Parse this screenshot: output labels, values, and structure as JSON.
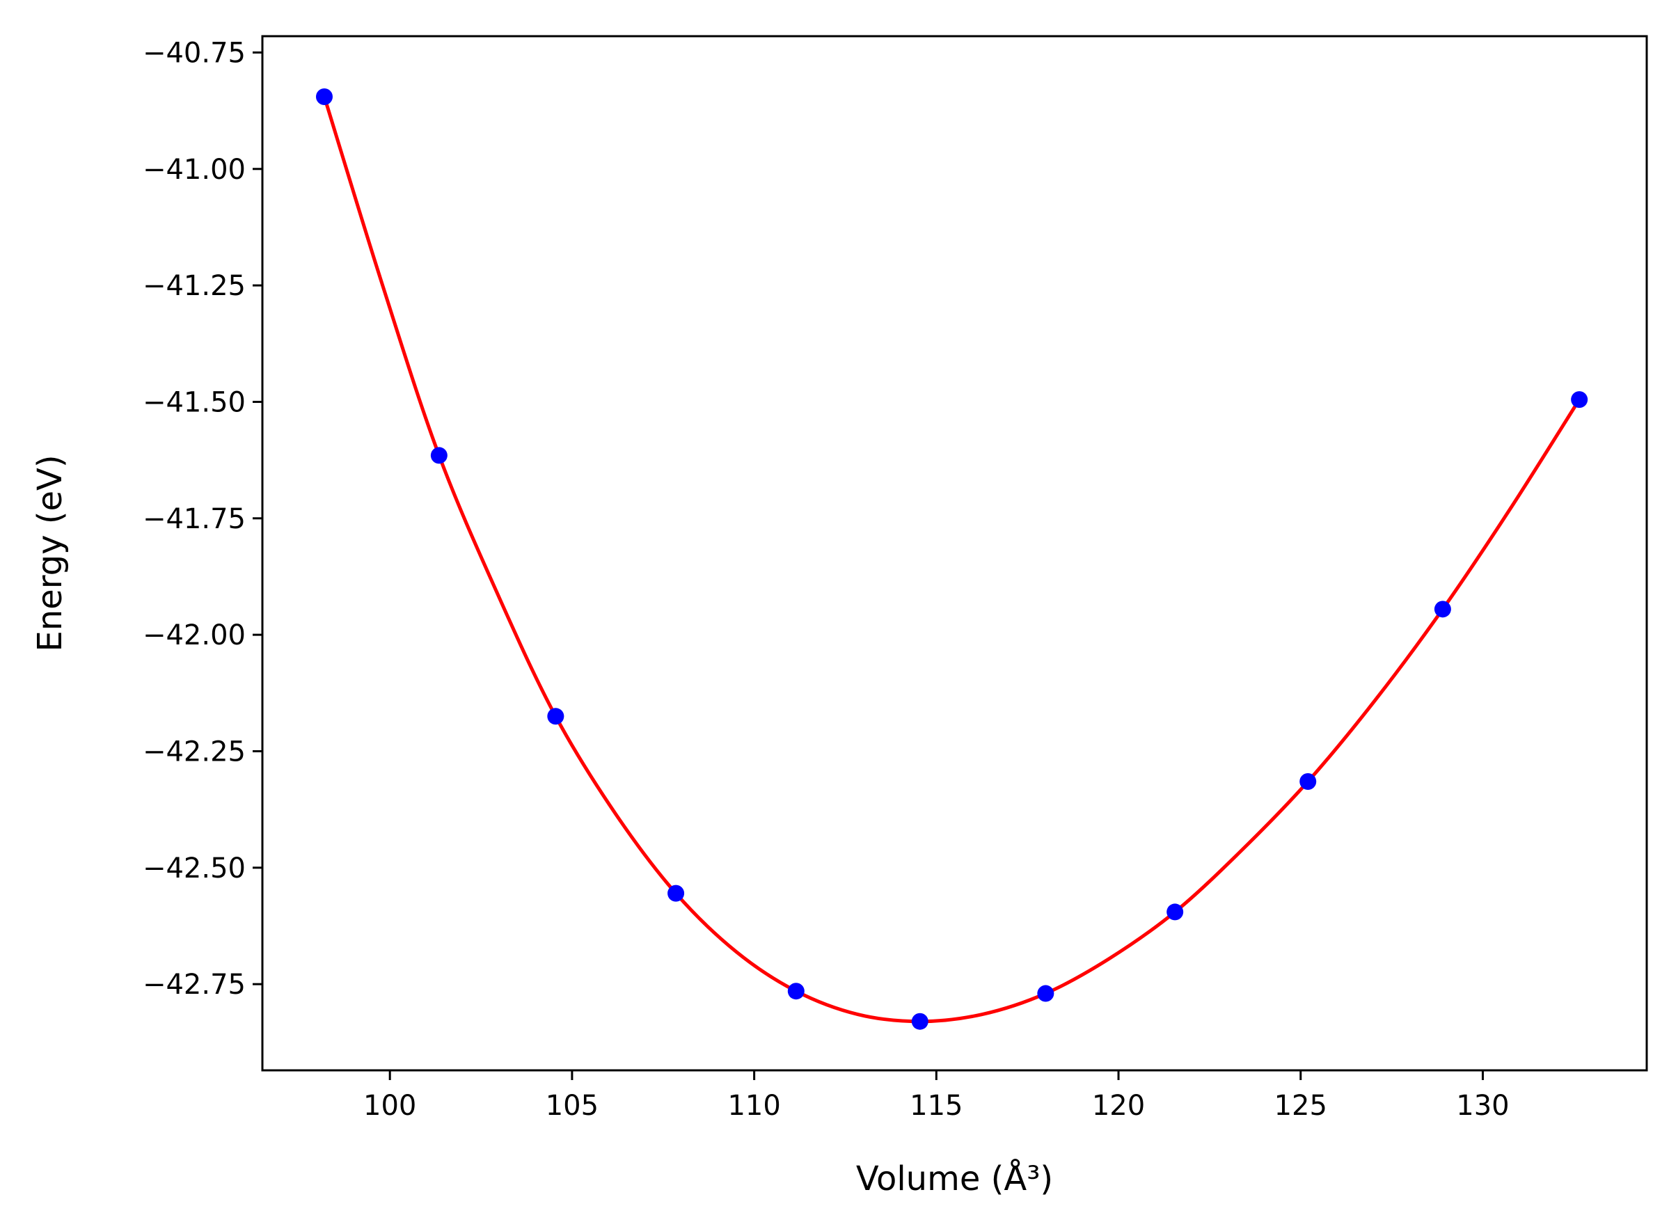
{
  "chart_data": {
    "type": "scatter",
    "title": "",
    "xlabel": "Volume (Å³)",
    "ylabel": "Energy (eV)",
    "xlim": [
      96.5,
      134.5
    ],
    "ylim": [
      -42.935,
      -40.715
    ],
    "grid": false,
    "legend": "none",
    "x_ticks": [
      100,
      105,
      110,
      115,
      120,
      125,
      130
    ],
    "x_tick_labels": [
      "100",
      "105",
      "110",
      "115",
      "120",
      "125",
      "130"
    ],
    "y_ticks": [
      -40.75,
      -41.0,
      -41.25,
      -41.5,
      -41.75,
      -42.0,
      -42.25,
      -42.5,
      -42.75
    ],
    "y_tick_labels": [
      "−40.75",
      "−41.00",
      "−41.25",
      "−41.50",
      "−41.75",
      "−42.00",
      "−42.25",
      "−42.50",
      "−42.75"
    ],
    "series": [
      {
        "type": "scatter",
        "color": "#0000ff",
        "marker": "circle",
        "x": [
          98.2,
          101.35,
          104.55,
          107.85,
          111.15,
          114.55,
          118.0,
          121.55,
          125.2,
          128.9,
          132.65
        ],
        "y": [
          -40.845,
          -41.615,
          -42.175,
          -42.555,
          -42.765,
          -42.83,
          -42.77,
          -42.595,
          -42.315,
          -41.945,
          -41.495
        ]
      },
      {
        "type": "line",
        "color": "#ff0000",
        "x": [
          98.2,
          99.8,
          101.35,
          103.0,
          104.55,
          106.2,
          107.85,
          109.5,
          111.15,
          112.85,
          114.55,
          116.25,
          118.0,
          119.75,
          121.55,
          123.35,
          125.2,
          127.05,
          128.9,
          130.75,
          132.65
        ],
        "y": [
          -40.845,
          -41.25,
          -41.615,
          -41.92,
          -42.175,
          -42.385,
          -42.555,
          -42.68,
          -42.765,
          -42.815,
          -42.83,
          -42.815,
          -42.77,
          -42.695,
          -42.595,
          -42.465,
          -42.315,
          -42.14,
          -41.945,
          -41.73,
          -41.495
        ]
      }
    ]
  }
}
